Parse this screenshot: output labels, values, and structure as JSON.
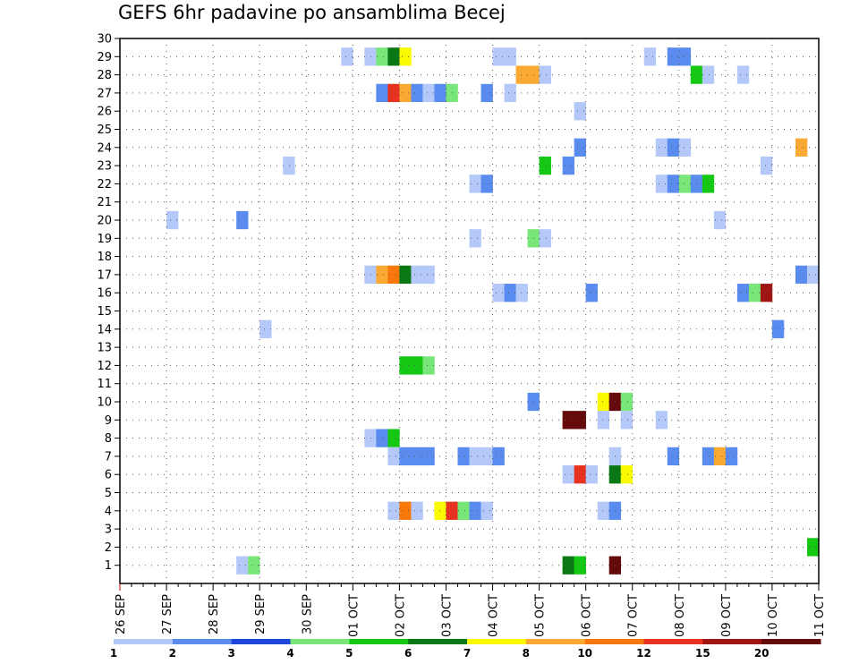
{
  "chart_data": {
    "type": "heatmap",
    "title": "GEFS 6hr padavine po ansamblima Becej",
    "x_ticks": [
      "26 SEP",
      "27 SEP",
      "28 SEP",
      "29 SEP",
      "30 SEP",
      "01 OCT",
      "02 OCT",
      "03 OCT",
      "04 OCT",
      "05 OCT",
      "06 OCT",
      "07 OCT",
      "08 OCT",
      "09 OCT",
      "10 OCT",
      "11 OCT"
    ],
    "y_ticks": [
      "1",
      "2",
      "3",
      "4",
      "5",
      "6",
      "7",
      "8",
      "9",
      "10",
      "11",
      "12",
      "13",
      "14",
      "15",
      "16",
      "17",
      "18",
      "19",
      "20",
      "21",
      "22",
      "23",
      "24",
      "25",
      "26",
      "27",
      "28",
      "29",
      "30"
    ],
    "x_unit": "days since 26 SEP (6-hour steps)",
    "ylim": [
      0,
      30
    ],
    "grid": true,
    "legend": {
      "placement": "bottom",
      "labels": [
        "1",
        "2",
        "3",
        "4",
        "5",
        "6",
        "7",
        "8",
        "10",
        "12",
        "15",
        "20"
      ],
      "colors": [
        "#b4c8fa",
        "#5a8cf0",
        "#1e46dc",
        "#78e678",
        "#14c814",
        "#0a7814",
        "#fafa00",
        "#faaa32",
        "#fa780a",
        "#e6321e",
        "#a01414",
        "#640a0a"
      ]
    },
    "cells": [
      {
        "member": 29,
        "day": 4.75,
        "value": 1.5
      },
      {
        "member": 29,
        "day": 5.25,
        "value": 1.5
      },
      {
        "member": 29,
        "day": 5.5,
        "value": 4.5
      },
      {
        "member": 29,
        "day": 5.75,
        "value": 6.5
      },
      {
        "member": 29,
        "day": 6.0,
        "value": 7.5
      },
      {
        "member": 29,
        "day": 8.0,
        "value": 1.5
      },
      {
        "member": 29,
        "day": 8.25,
        "value": 1.5
      },
      {
        "member": 29,
        "day": 11.25,
        "value": 1.5
      },
      {
        "member": 29,
        "day": 11.75,
        "value": 2.5
      },
      {
        "member": 29,
        "day": 12.0,
        "value": 2.0
      },
      {
        "member": 28,
        "day": 8.5,
        "value": 9
      },
      {
        "member": 28,
        "day": 8.75,
        "value": 9
      },
      {
        "member": 28,
        "day": 9.0,
        "value": 1.5
      },
      {
        "member": 28,
        "day": 12.25,
        "value": 5.5
      },
      {
        "member": 28,
        "day": 12.5,
        "value": 1.5
      },
      {
        "member": 28,
        "day": 13.25,
        "value": 1.5
      },
      {
        "member": 27,
        "day": 5.5,
        "value": 2
      },
      {
        "member": 27,
        "day": 5.75,
        "value": 13
      },
      {
        "member": 27,
        "day": 6.0,
        "value": 9
      },
      {
        "member": 27,
        "day": 6.25,
        "value": 2
      },
      {
        "member": 27,
        "day": 6.5,
        "value": 1.5
      },
      {
        "member": 27,
        "day": 6.75,
        "value": 2
      },
      {
        "member": 27,
        "day": 7.0,
        "value": 4.5
      },
      {
        "member": 27,
        "day": 7.75,
        "value": 2
      },
      {
        "member": 27,
        "day": 8.25,
        "value": 1.5
      },
      {
        "member": 26,
        "day": 9.75,
        "value": 1.5
      },
      {
        "member": 24,
        "day": 9.75,
        "value": 2
      },
      {
        "member": 24,
        "day": 11.5,
        "value": 1.5
      },
      {
        "member": 24,
        "day": 11.75,
        "value": 2
      },
      {
        "member": 24,
        "day": 12.0,
        "value": 1.5
      },
      {
        "member": 24,
        "day": 14.5,
        "value": 9
      },
      {
        "member": 23,
        "day": 3.5,
        "value": 1.5
      },
      {
        "member": 23,
        "day": 9.0,
        "value": 5.5
      },
      {
        "member": 23,
        "day": 9.5,
        "value": 2.5
      },
      {
        "member": 23,
        "day": 13.75,
        "value": 1.5
      },
      {
        "member": 22,
        "day": 7.5,
        "value": 1.5
      },
      {
        "member": 22,
        "day": 7.75,
        "value": 2
      },
      {
        "member": 22,
        "day": 11.5,
        "value": 1.5
      },
      {
        "member": 22,
        "day": 11.75,
        "value": 2
      },
      {
        "member": 22,
        "day": 12.0,
        "value": 4.5
      },
      {
        "member": 22,
        "day": 12.25,
        "value": 2.5
      },
      {
        "member": 22,
        "day": 12.5,
        "value": 5.5
      },
      {
        "member": 20,
        "day": 1.0,
        "value": 1.5
      },
      {
        "member": 20,
        "day": 2.5,
        "value": 2
      },
      {
        "member": 20,
        "day": 12.75,
        "value": 1.5
      },
      {
        "member": 19,
        "day": 7.5,
        "value": 1.5
      },
      {
        "member": 19,
        "day": 8.75,
        "value": 4.5
      },
      {
        "member": 19,
        "day": 9.0,
        "value": 1.5
      },
      {
        "member": 17,
        "day": 5.25,
        "value": 1.5
      },
      {
        "member": 17,
        "day": 5.5,
        "value": 9
      },
      {
        "member": 17,
        "day": 5.75,
        "value": 11
      },
      {
        "member": 17,
        "day": 6.0,
        "value": 6.5
      },
      {
        "member": 17,
        "day": 6.25,
        "value": 1.5
      },
      {
        "member": 17,
        "day": 6.5,
        "value": 1.5
      },
      {
        "member": 17,
        "day": 14.5,
        "value": 2
      },
      {
        "member": 17,
        "day": 14.75,
        "value": 1.5
      },
      {
        "member": 16,
        "day": 8.0,
        "value": 1.5
      },
      {
        "member": 16,
        "day": 8.25,
        "value": 2
      },
      {
        "member": 16,
        "day": 8.5,
        "value": 1.5
      },
      {
        "member": 16,
        "day": 10.0,
        "value": 2
      },
      {
        "member": 16,
        "day": 13.25,
        "value": 2
      },
      {
        "member": 16,
        "day": 13.5,
        "value": 4.5
      },
      {
        "member": 16,
        "day": 13.75,
        "value": 17
      },
      {
        "member": 14,
        "day": 14.0,
        "value": 2
      },
      {
        "member": 14,
        "day": 3.0,
        "value": 1.5
      },
      {
        "member": 12,
        "day": 6.0,
        "value": 5.5
      },
      {
        "member": 12,
        "day": 6.25,
        "value": 5.5
      },
      {
        "member": 12,
        "day": 6.5,
        "value": 4.5
      },
      {
        "member": 10,
        "day": 8.75,
        "value": 2
      },
      {
        "member": 10,
        "day": 10.25,
        "value": 7.5
      },
      {
        "member": 10,
        "day": 10.5,
        "value": 22
      },
      {
        "member": 10,
        "day": 10.75,
        "value": 4.5
      },
      {
        "member": 9,
        "day": 9.5,
        "value": 22
      },
      {
        "member": 9,
        "day": 9.75,
        "value": 22
      },
      {
        "member": 9,
        "day": 10.25,
        "value": 1.5
      },
      {
        "member": 9,
        "day": 10.75,
        "value": 1.5
      },
      {
        "member": 9,
        "day": 11.5,
        "value": 1.5
      },
      {
        "member": 8,
        "day": 5.25,
        "value": 1.5
      },
      {
        "member": 8,
        "day": 5.5,
        "value": 2
      },
      {
        "member": 8,
        "day": 5.75,
        "value": 5.5
      },
      {
        "member": 7,
        "day": 5.75,
        "value": 1.5
      },
      {
        "member": 7,
        "day": 6.0,
        "value": 2
      },
      {
        "member": 7,
        "day": 6.25,
        "value": 2
      },
      {
        "member": 7,
        "day": 6.5,
        "value": 2
      },
      {
        "member": 7,
        "day": 7.25,
        "value": 2
      },
      {
        "member": 7,
        "day": 7.5,
        "value": 1.5
      },
      {
        "member": 7,
        "day": 7.75,
        "value": 1.5
      },
      {
        "member": 7,
        "day": 8.0,
        "value": 2
      },
      {
        "member": 7,
        "day": 10.5,
        "value": 1.5
      },
      {
        "member": 7,
        "day": 11.75,
        "value": 2.5
      },
      {
        "member": 7,
        "day": 12.5,
        "value": 2
      },
      {
        "member": 7,
        "day": 12.75,
        "value": 9
      },
      {
        "member": 7,
        "day": 13.0,
        "value": 2
      },
      {
        "member": 6,
        "day": 9.5,
        "value": 1.5
      },
      {
        "member": 6,
        "day": 9.75,
        "value": 13
      },
      {
        "member": 6,
        "day": 10.0,
        "value": 1.5
      },
      {
        "member": 6,
        "day": 10.5,
        "value": 6.5
      },
      {
        "member": 6,
        "day": 10.75,
        "value": 7.5
      },
      {
        "member": 4,
        "day": 5.75,
        "value": 1.5
      },
      {
        "member": 4,
        "day": 6.0,
        "value": 11
      },
      {
        "member": 4,
        "day": 6.25,
        "value": 1.5
      },
      {
        "member": 4,
        "day": 6.75,
        "value": 7.5
      },
      {
        "member": 4,
        "day": 7.0,
        "value": 13
      },
      {
        "member": 4,
        "day": 7.25,
        "value": 4.5
      },
      {
        "member": 4,
        "day": 7.5,
        "value": 2
      },
      {
        "member": 4,
        "day": 7.75,
        "value": 1.5
      },
      {
        "member": 4,
        "day": 10.25,
        "value": 1.5
      },
      {
        "member": 4,
        "day": 10.5,
        "value": 2
      },
      {
        "member": 2,
        "day": 14.75,
        "value": 5.5
      },
      {
        "member": 1,
        "day": 2.5,
        "value": 1.5
      },
      {
        "member": 1,
        "day": 2.75,
        "value": 4.5
      },
      {
        "member": 1,
        "day": 9.5,
        "value": 6.5
      },
      {
        "member": 1,
        "day": 9.75,
        "value": 5.5
      },
      {
        "member": 1,
        "day": 10.5,
        "value": 22
      }
    ]
  }
}
